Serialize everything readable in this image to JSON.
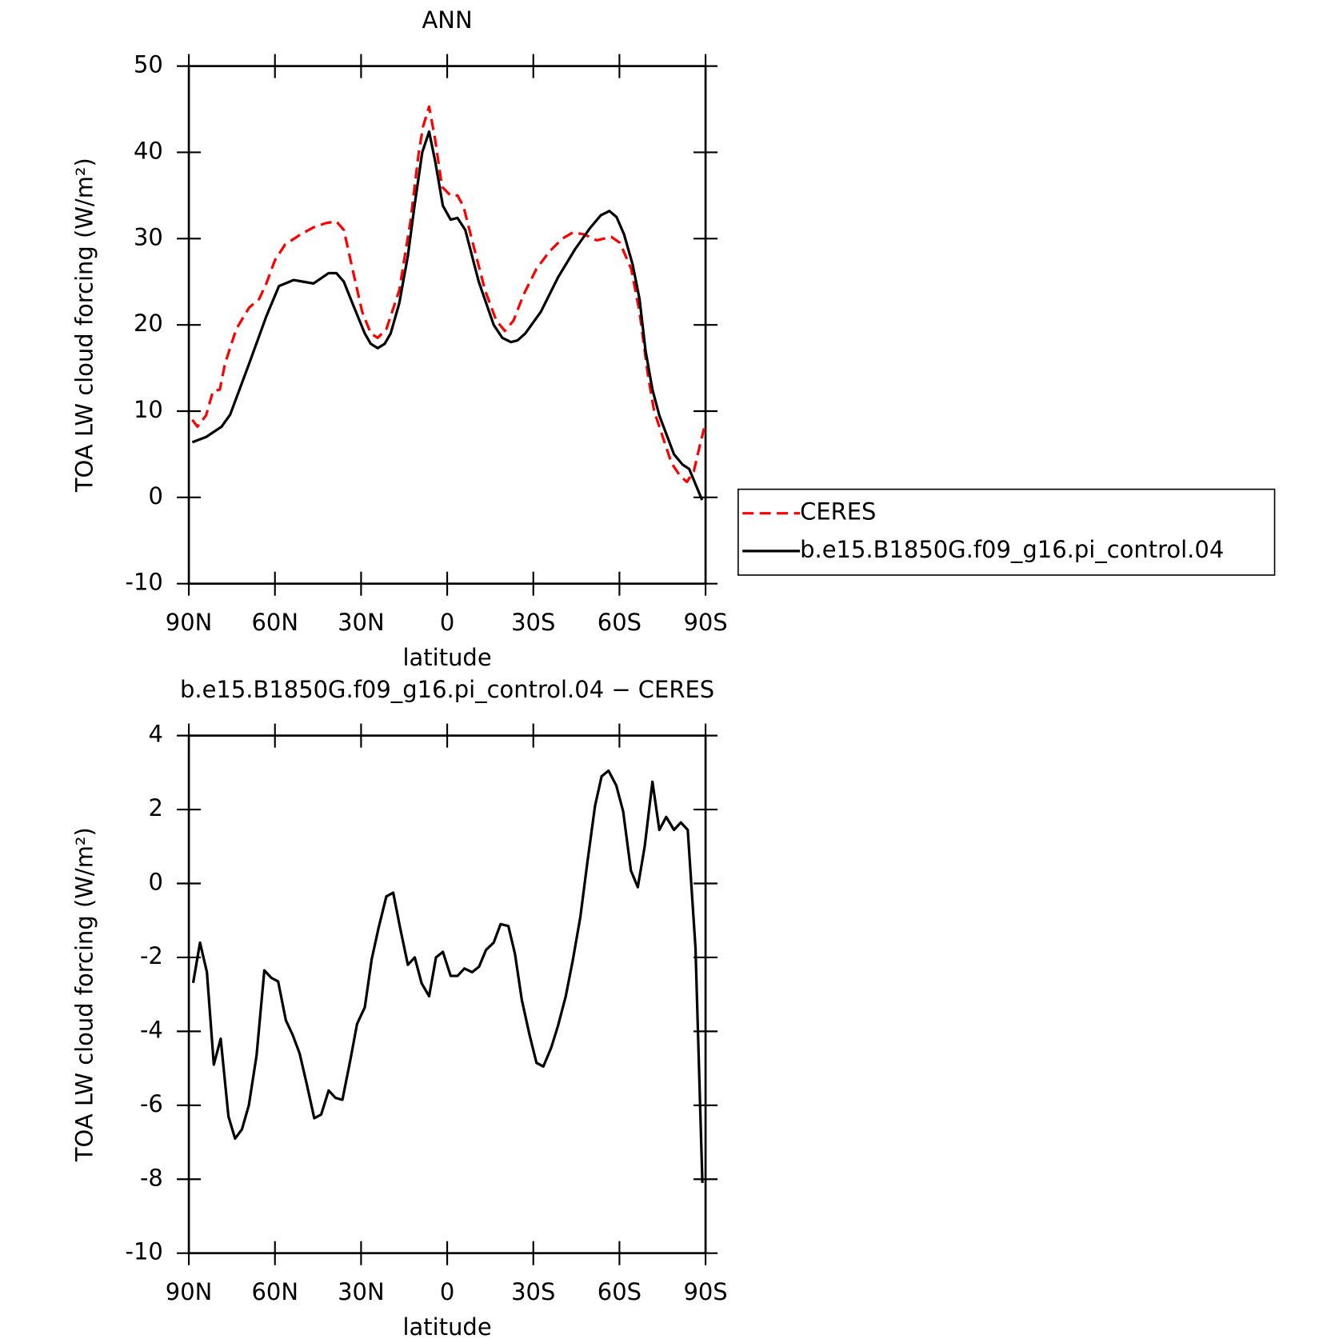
{
  "chart_data": [
    {
      "type": "line",
      "title": "ANN",
      "xlabel": "latitude",
      "ylabel": "TOA LW cloud forcing (W/m²)",
      "xlim": [
        90,
        -90
      ],
      "xticks": [
        {
          "value": 90,
          "label": "90N"
        },
        {
          "value": 60,
          "label": "60N"
        },
        {
          "value": 30,
          "label": "30N"
        },
        0,
        {
          "value": -30,
          "label": "30S"
        },
        {
          "value": -60,
          "label": "60S"
        },
        {
          "value": -90,
          "label": "90S"
        }
      ],
      "ylim": [
        -10,
        50
      ],
      "yticks": [
        -10,
        0,
        10,
        20,
        30,
        40,
        50
      ],
      "legend": "right",
      "series": [
        {
          "name": "CERES",
          "color": "#ff0000",
          "linestyle": "dashed",
          "x": [
            88.8,
            87,
            84,
            81.6,
            79.2,
            77.4,
            73.5,
            69,
            65.5,
            63,
            60,
            56.5,
            51,
            46.6,
            42.2,
            38.6,
            36,
            33,
            29.6,
            26.6,
            24.2,
            21.2,
            16.7,
            12.8,
            9.9,
            8.4,
            6.3,
            4.2,
            1.8,
            -1.2,
            -3.6,
            -5.7,
            -9.3,
            -13.2,
            -17.1,
            -20.1,
            -23.1,
            -26.6,
            -31.1,
            -35.6,
            -40.1,
            -43.7,
            -47.6,
            -52.1,
            -57.2,
            -60.2,
            -64.1,
            -67,
            -70,
            -72.1,
            -75.1,
            -78.1,
            -81.1,
            -83.5,
            -85.9,
            -88,
            -89.5
          ],
          "values": [
            9,
            8.2,
            9.5,
            12.3,
            12.5,
            15.5,
            19.5,
            22,
            23,
            24.8,
            27.5,
            29.3,
            30.5,
            31.3,
            31.8,
            32,
            31,
            26.5,
            21.5,
            19,
            18.5,
            19.5,
            24,
            32,
            40,
            43,
            45.3,
            41.5,
            36,
            35,
            35,
            33.7,
            29,
            24,
            20.5,
            19.3,
            20.5,
            23.5,
            26.5,
            28.5,
            30,
            30.7,
            30.5,
            29.8,
            30.2,
            29.5,
            26.5,
            21.5,
            14,
            10,
            7,
            4,
            2.5,
            1.8,
            3,
            6,
            8
          ]
        },
        {
          "name": "b.e15.B1850G.f09_g16.pi_control.04",
          "color": "#000000",
          "linestyle": "solid",
          "x": [
            88.8,
            84,
            78.6,
            75.6,
            69,
            63,
            58.6,
            53.5,
            46.6,
            41.3,
            38.6,
            36,
            33,
            28.7,
            26.6,
            24.2,
            21.8,
            19.7,
            16.7,
            13.7,
            11.3,
            8.7,
            6.3,
            4.2,
            1.5,
            -1.2,
            -3.6,
            -6.3,
            -11,
            -16.2,
            -19.2,
            -22.2,
            -24.5,
            -27.2,
            -32.6,
            -38.6,
            -44.6,
            -49.7,
            -53.5,
            -56.5,
            -59,
            -61.6,
            -64.6,
            -67,
            -69.1,
            -71.5,
            -73.9,
            -79,
            -82,
            -84.3,
            -88.8
          ],
          "values": [
            6.4,
            7,
            8.2,
            9.6,
            15.5,
            21,
            24.5,
            25.2,
            24.8,
            26,
            26,
            25,
            22.5,
            19,
            17.8,
            17.3,
            17.8,
            19,
            22.5,
            28,
            34,
            40,
            42.4,
            39,
            33.8,
            32.2,
            32.4,
            31,
            25,
            20,
            18.5,
            18,
            18.2,
            19,
            21.5,
            25.5,
            28.8,
            31.2,
            32.7,
            33.2,
            32.5,
            30.5,
            27,
            23,
            17,
            12.5,
            9.5,
            5,
            3.8,
            3.3,
            -0.3
          ]
        }
      ]
    },
    {
      "type": "line",
      "title": "b.e15.B1850G.f09_g16.pi_control.04 − CERES",
      "xlabel": "latitude",
      "ylabel": "TOA LW cloud forcing (W/m²)",
      "xlim": [
        90,
        -90
      ],
      "xticks": [
        {
          "value": 90,
          "label": "90N"
        },
        {
          "value": 60,
          "label": "60N"
        },
        {
          "value": 30,
          "label": "30N"
        },
        0,
        {
          "value": -30,
          "label": "30S"
        },
        {
          "value": -60,
          "label": "60S"
        },
        {
          "value": -90,
          "label": "90S"
        }
      ],
      "ylim": [
        -10,
        4
      ],
      "yticks": [
        -10,
        -8,
        -6,
        -4,
        -2,
        0,
        2,
        4
      ],
      "series": [
        {
          "color": "#000000",
          "linestyle": "solid",
          "x": [
            88.5,
            86.1,
            83.7,
            81.3,
            78.9,
            76.2,
            73.9,
            71.5,
            69.1,
            66.4,
            63.7,
            61.3,
            58.9,
            56.2,
            53.8,
            51.4,
            49,
            46.3,
            43.9,
            41.3,
            38.9,
            36.5,
            33.8,
            31.4,
            28.7,
            26.3,
            23.9,
            21.2,
            18.8,
            16.4,
            13.7,
            11.3,
            8.9,
            6.3,
            3.9,
            1.5,
            -1.2,
            -3.6,
            -6,
            -8.7,
            -11.1,
            -13.5,
            -16.2,
            -18.6,
            -21.3,
            -23.6,
            -26,
            -28.7,
            -31.1,
            -33.5,
            -36.2,
            -38.6,
            -41.3,
            -43.7,
            -46.4,
            -48.8,
            -51.5,
            -53.8,
            -56.2,
            -58.9,
            -61.3,
            -64,
            -66.4,
            -68.8,
            -71.5,
            -73.9,
            -76.3,
            -79,
            -81.4,
            -83.8,
            -86.5,
            -88.9
          ],
          "values": [
            -2.69,
            -1.6,
            -2.4,
            -4.9,
            -4.2,
            -6.3,
            -6.9,
            -6.65,
            -6,
            -4.65,
            -2.35,
            -2.55,
            -2.65,
            -3.7,
            -4.1,
            -4.6,
            -5.4,
            -6.35,
            -6.25,
            -5.6,
            -5.8,
            -5.85,
            -4.8,
            -3.8,
            -3.35,
            -2.05,
            -1.2,
            -0.35,
            -0.25,
            -1.2,
            -2.2,
            -2,
            -2.7,
            -3.05,
            -2,
            -1.85,
            -2.5,
            -2.5,
            -2.3,
            -2.4,
            -2.25,
            -1.8,
            -1.6,
            -1.1,
            -1.15,
            -1.9,
            -3.15,
            -4.1,
            -4.85,
            -4.95,
            -4.45,
            -3.85,
            -3.05,
            -2.1,
            -0.9,
            0.55,
            2.1,
            2.9,
            3.05,
            2.65,
            1.95,
            0.35,
            -0.1,
            1,
            2.75,
            1.45,
            1.8,
            1.45,
            1.65,
            1.45,
            -1.75,
            -8.1
          ]
        }
      ]
    }
  ]
}
